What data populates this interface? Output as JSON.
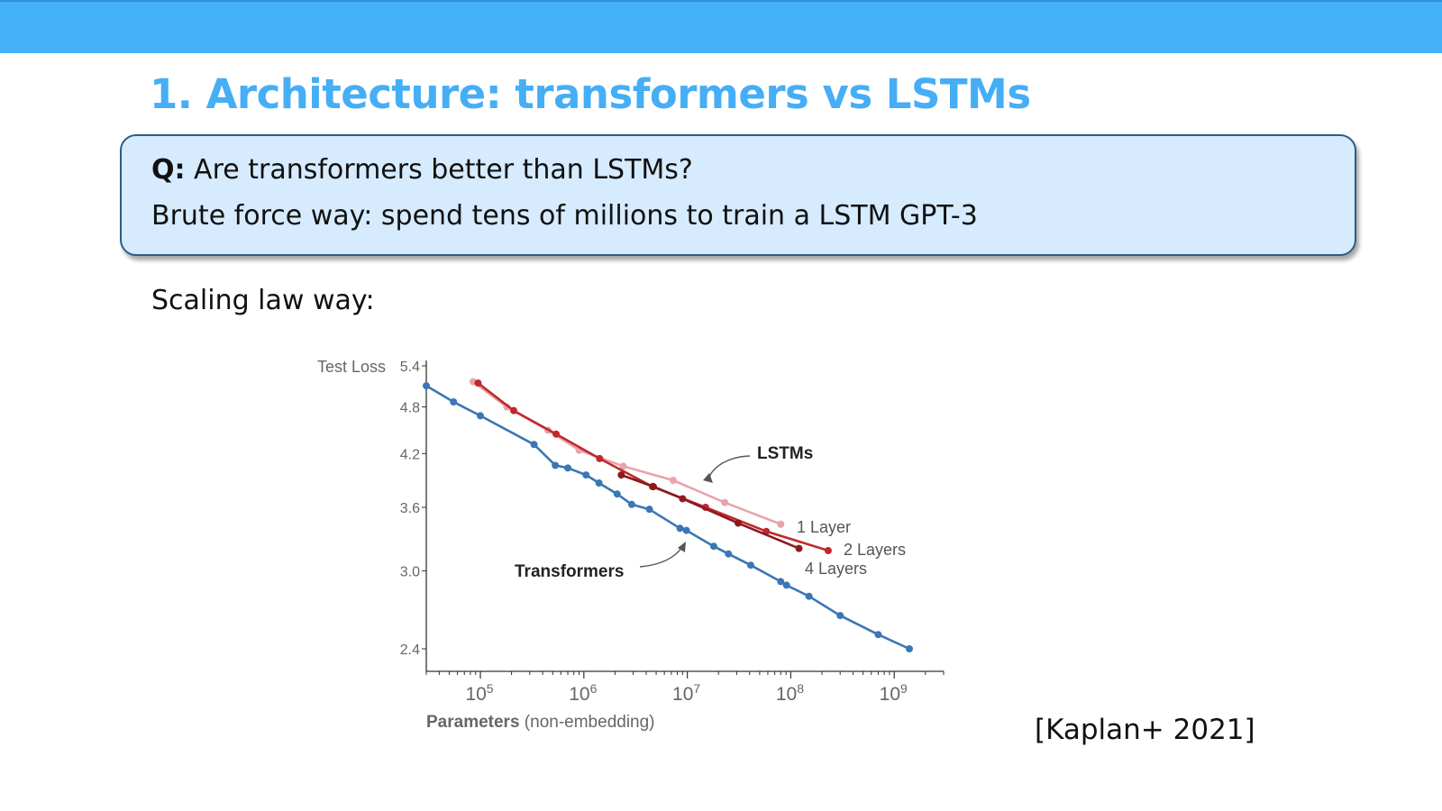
{
  "slide": {
    "title": "1. Architecture: transformers vs LSTMs",
    "question_label": "Q:",
    "question_text": "Are transformers better than LSTMs?",
    "brute_force": "Brute force way: spend tens of millions to train a LSTM GPT-3",
    "scaling": "Scaling law way:",
    "citation": "[Kaplan+ 2021]"
  },
  "colors": {
    "header_bar": "#44b0f9",
    "title": "#45aef5",
    "question_box_fill": "#d6ebfd",
    "question_box_border": "#2b5d86"
  },
  "chart_data": {
    "type": "line",
    "x_scale": "log",
    "y_scale": "log",
    "xlabel_bold": "Parameters",
    "xlabel_rest": " (non-embedding)",
    "ylabel": "Test Loss",
    "xlim": [
      30000,
      3000000000
    ],
    "ylim": [
      2.25,
      5.4
    ],
    "y_ticks": [
      "5.4",
      "4.8",
      "4.2",
      "3.6",
      "3.0",
      "2.4"
    ],
    "x_ticks": [
      {
        "base": "10",
        "exp": "5"
      },
      {
        "base": "10",
        "exp": "6"
      },
      {
        "base": "10",
        "exp": "7"
      },
      {
        "base": "10",
        "exp": "8"
      },
      {
        "base": "10",
        "exp": "9"
      }
    ],
    "series": [
      {
        "name": "Transformers",
        "color": "#3a77b4",
        "x": [
          30000,
          55000,
          100000,
          330000,
          530000,
          700000,
          1050000,
          1400000,
          2100000,
          2900000,
          4300000,
          8500000,
          9800000,
          18000000,
          25000000,
          41000000,
          80000000,
          91000000,
          150000000,
          300000000,
          700000000,
          1400000000
        ],
        "y": [
          5.1,
          4.87,
          4.68,
          4.31,
          4.06,
          4.03,
          3.95,
          3.86,
          3.74,
          3.63,
          3.58,
          3.39,
          3.37,
          3.22,
          3.15,
          3.05,
          2.91,
          2.88,
          2.79,
          2.64,
          2.5,
          2.4
        ]
      },
      {
        "name": "1 Layer",
        "color": "#e8a4a9",
        "x": [
          85000,
          180000,
          450000,
          900000,
          2400000,
          7300000,
          23000000,
          80000000
        ],
        "y": [
          5.16,
          4.8,
          4.49,
          4.24,
          4.05,
          3.89,
          3.65,
          3.43
        ]
      },
      {
        "name": "2 Layers",
        "color": "#c0282d",
        "x": [
          95000,
          210000,
          540000,
          1420000,
          4600000,
          15000000,
          58000000,
          230000000
        ],
        "y": [
          5.14,
          4.75,
          4.44,
          4.14,
          3.82,
          3.6,
          3.36,
          3.18
        ]
      },
      {
        "name": "4 Layers",
        "color": "#8b1a1d",
        "x": [
          2300000,
          4700000,
          9000000,
          31000000,
          120000000
        ],
        "y": [
          3.95,
          3.82,
          3.69,
          3.44,
          3.2
        ]
      }
    ],
    "annotations": [
      {
        "text": "LSTMs",
        "bold": true
      },
      {
        "text": "Transformers",
        "bold": true
      },
      {
        "text": "1 Layer",
        "bold": false
      },
      {
        "text": "2 Layers",
        "bold": false
      },
      {
        "text": "4 Layers",
        "bold": false
      }
    ]
  }
}
